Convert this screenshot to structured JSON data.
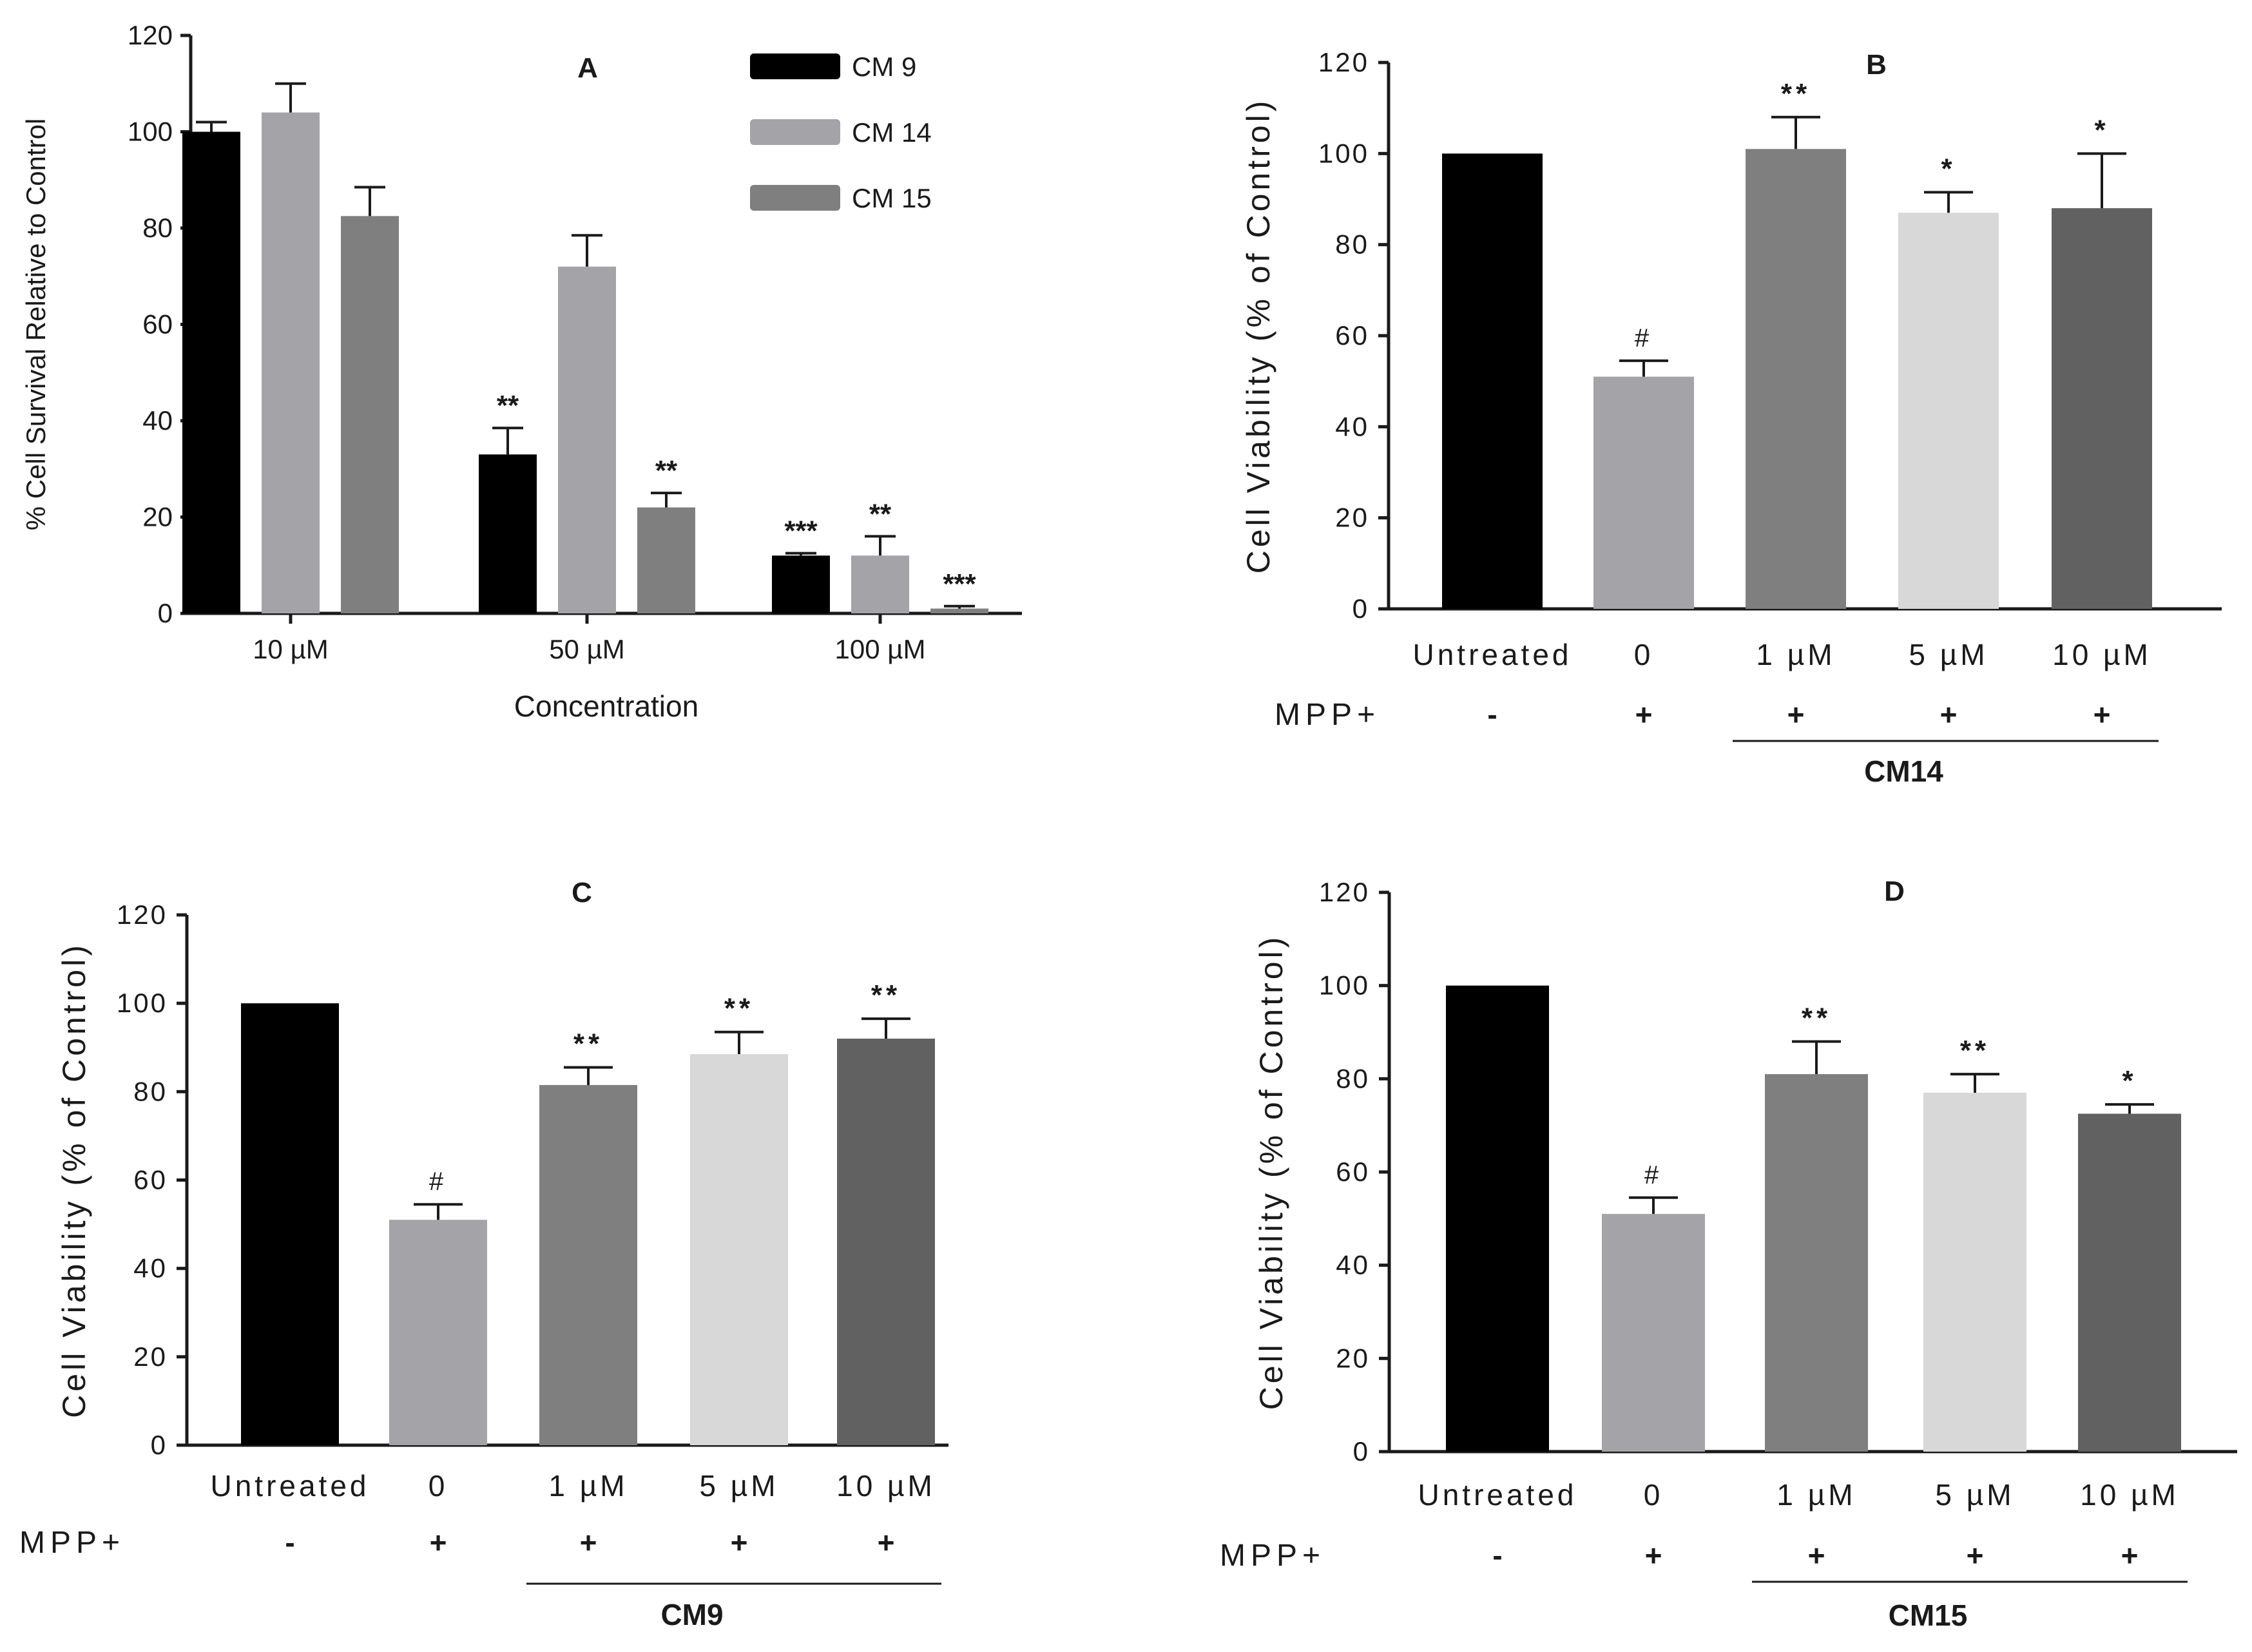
{
  "colors": {
    "black": "#000000",
    "light_gray": "#a3a3a8",
    "mid_gray": "#7f7f7f",
    "pale_gray": "#d8d8d8",
    "dark_gray": "#616161",
    "text": "#1a1a1a"
  },
  "chart_data": [
    {
      "panel": "A",
      "type": "bar",
      "title": "A",
      "xlabel": "Concentration",
      "ylabel": "% Cell Survival Relative to Control",
      "ylim": [
        0,
        120
      ],
      "yticks": [
        0,
        20,
        40,
        60,
        80,
        100,
        120
      ],
      "categories": [
        "10 µM",
        "50 µM",
        "100 µM"
      ],
      "legend_position": "top-right",
      "series": [
        {
          "name": "CM 9",
          "color": "#000000",
          "values": [
            100,
            33,
            12
          ],
          "errors": [
            2,
            5.5,
            0.5
          ],
          "significance": [
            "",
            "**",
            "***"
          ]
        },
        {
          "name": "CM 14",
          "color": "#a3a3a8",
          "values": [
            104,
            72,
            12
          ],
          "errors": [
            6,
            6.5,
            4
          ],
          "significance": [
            "",
            "",
            "**"
          ]
        },
        {
          "name": "CM 15",
          "color": "#7f7f7f",
          "values": [
            82.5,
            22,
            1
          ],
          "errors": [
            6,
            3,
            0.5
          ],
          "significance": [
            "",
            "**",
            "***"
          ]
        }
      ]
    },
    {
      "panel": "B",
      "type": "bar",
      "title": "B",
      "ylabel": "Cell Viability (% of Control)",
      "ylim": [
        0,
        120
      ],
      "yticks": [
        0,
        20,
        40,
        60,
        80,
        100,
        120
      ],
      "categories": [
        "Untreated",
        "0",
        "1 µM",
        "5 µM",
        "10 µM"
      ],
      "values": [
        100,
        51,
        101,
        87,
        88
      ],
      "errors": [
        0,
        3.5,
        7,
        4.5,
        12
      ],
      "significance": [
        "",
        "#",
        "**",
        "*",
        "*"
      ],
      "bar_colors": [
        "#000000",
        "#a3a3a8",
        "#7f7f7f",
        "#d8d8d8",
        "#616161"
      ],
      "row_label": "MPP+",
      "row_values": [
        "-",
        "+",
        "+",
        "+",
        "+"
      ],
      "group_label": "CM14"
    },
    {
      "panel": "C",
      "type": "bar",
      "title": "C",
      "ylabel": "Cell Viability (% of Control)",
      "ylim": [
        0,
        120
      ],
      "yticks": [
        0,
        20,
        40,
        60,
        80,
        100,
        120
      ],
      "categories": [
        "Untreated",
        "0",
        "1 µM",
        "5 µM",
        "10 µM"
      ],
      "values": [
        100,
        51,
        81.5,
        88.5,
        92
      ],
      "errors": [
        0,
        3.5,
        4,
        5,
        4.5
      ],
      "significance": [
        "",
        "#",
        "**",
        "**",
        "**"
      ],
      "bar_colors": [
        "#000000",
        "#a3a3a8",
        "#7f7f7f",
        "#d8d8d8",
        "#616161"
      ],
      "row_label": "MPP+",
      "row_values": [
        "-",
        "+",
        "+",
        "+",
        "+"
      ],
      "group_label": "CM9"
    },
    {
      "panel": "D",
      "type": "bar",
      "title": "D",
      "ylabel": "Cell Viability (% of Control)",
      "ylim": [
        0,
        120
      ],
      "yticks": [
        0,
        20,
        40,
        60,
        80,
        100,
        120
      ],
      "categories": [
        "Untreated",
        "0",
        "1 µM",
        "5 µM",
        "10 µM"
      ],
      "values": [
        100,
        51,
        81,
        77,
        72.5
      ],
      "errors": [
        0,
        3.5,
        7,
        4,
        2
      ],
      "significance": [
        "",
        "#",
        "**",
        "**",
        "*"
      ],
      "bar_colors": [
        "#000000",
        "#a3a3a8",
        "#7f7f7f",
        "#d8d8d8",
        "#616161"
      ],
      "row_label": "MPP+",
      "row_values": [
        "-",
        "+",
        "+",
        "+",
        "+"
      ],
      "group_label": "CM15"
    }
  ]
}
